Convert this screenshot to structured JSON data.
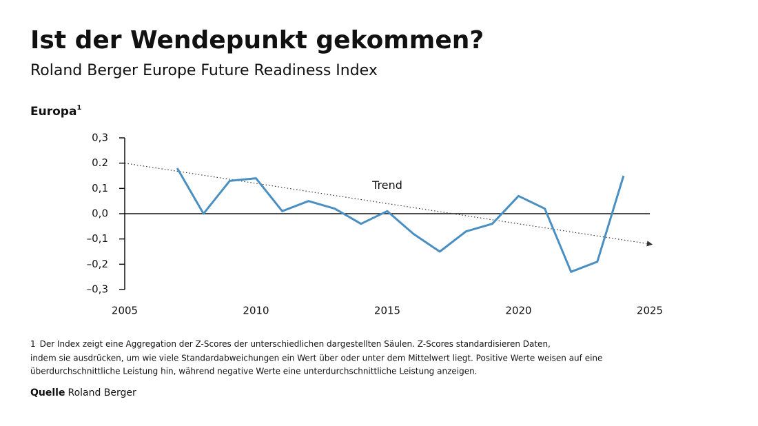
{
  "chart_data": {
    "type": "line",
    "title": "Ist der Wendepunkt gekommen?",
    "subtitle": "Roland Berger Europe Future Readiness Index",
    "y_label": "Europa",
    "y_label_note": "1",
    "x": [
      2007,
      2008,
      2009,
      2010,
      2011,
      2012,
      2013,
      2014,
      2015,
      2016,
      2017,
      2018,
      2019,
      2020,
      2021,
      2022,
      2023,
      2024
    ],
    "values": [
      0.18,
      0.0,
      0.13,
      0.14,
      0.01,
      0.05,
      0.02,
      -0.04,
      0.01,
      -0.08,
      -0.15,
      -0.07,
      -0.04,
      0.07,
      0.02,
      -0.23,
      -0.19,
      0.15
    ],
    "color": "#4a8fc2",
    "trend": {
      "label": "Trend",
      "x": [
        2005,
        2025
      ],
      "values": [
        0.2,
        -0.12
      ]
    },
    "xlim": [
      2005,
      2025
    ],
    "xticks": [
      2005,
      2010,
      2015,
      2020,
      2025
    ],
    "ylim": [
      -0.3,
      0.3
    ],
    "yticks": [
      {
        "value": 0.3,
        "label": "0,3"
      },
      {
        "value": 0.2,
        "label": "0.2"
      },
      {
        "value": 0.1,
        "label": "0,1"
      },
      {
        "value": 0,
        "label": "0,0"
      },
      {
        "value": -0.1,
        "label": "–0,1"
      },
      {
        "value": -0.2,
        "label": "–0,2"
      },
      {
        "value": -0.3,
        "label": "–0,3"
      }
    ],
    "footnote": {
      "marker": "1",
      "lines": [
        "Der Index zeigt eine Aggregation der Z-Scores der unterschiedlichen dargestellten Säulen. Z-Scores standardisieren Daten,",
        "indem sie ausdrücken, um wie viele Standardabweichungen ein Wert über oder unter dem Mittelwert liegt. Positive Werte weisen auf eine",
        "überdurchschnittliche Leistung hin, während negative Werte eine unterdurchschnittliche Leistung anzeigen."
      ]
    },
    "source": {
      "label": "Quelle",
      "text": "Roland Berger"
    }
  }
}
